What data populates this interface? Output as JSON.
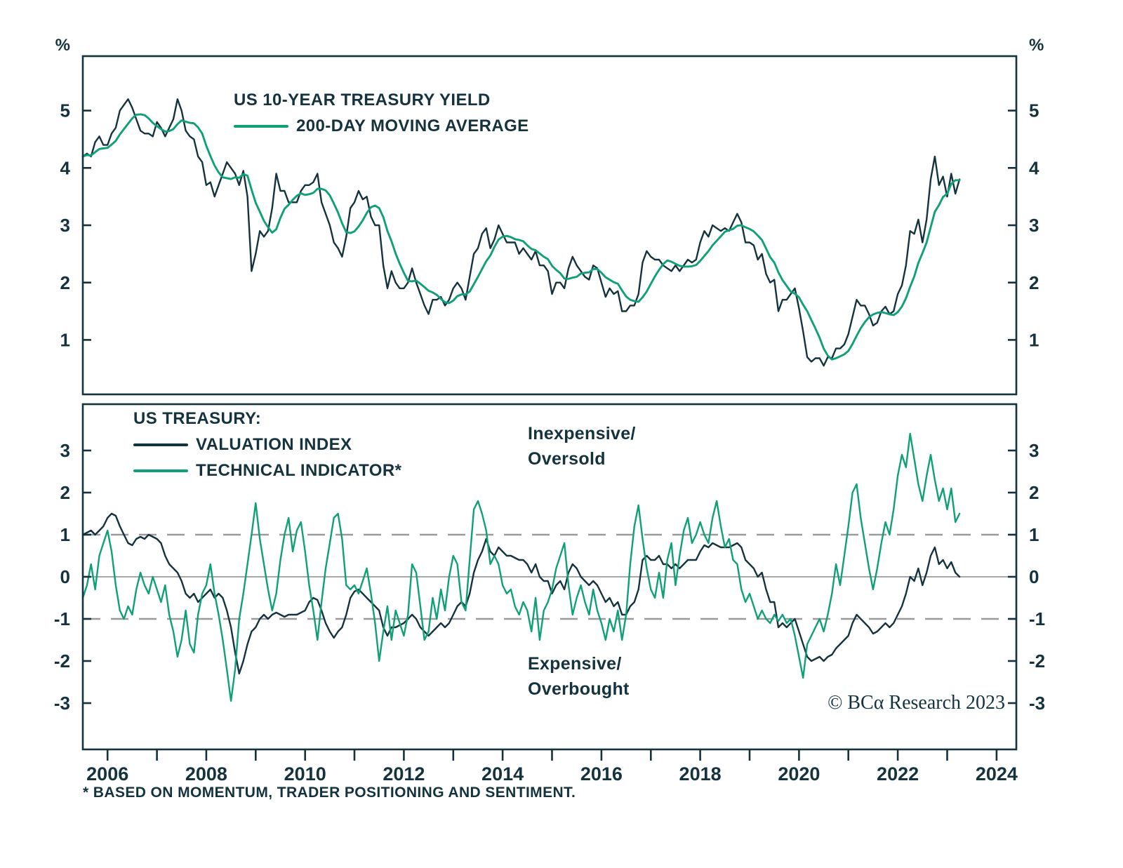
{
  "colors": {
    "dark": "#14333E",
    "green": "#0FA078",
    "gridline": "#9B9B9B",
    "background": "#FFFFFF"
  },
  "top_legend": {
    "line1": "US 10-YEAR TREASURY YIELD",
    "line2": "200-DAY MOVING AVERAGE"
  },
  "bottom_legend": {
    "title": "US TREASURY:",
    "item1": "VALUATION INDEX",
    "item2": "TECHNICAL INDICATOR*"
  },
  "annotations": {
    "upper_line1": "Inexpensive/",
    "upper_line2": "Oversold",
    "lower_line1": "Expensive/",
    "lower_line2": "Overbought"
  },
  "credit": "© BCα Research 2023",
  "footnote": "* BASED ON MOMENTUM, TRADER POSITIONING AND SENTIMENT.",
  "chart_data": [
    {
      "type": "line",
      "panel": "top",
      "ylabel_left": "%",
      "ylabel_right": "%",
      "xlim": [
        2005.5,
        2024.4
      ],
      "ylim": [
        0.05,
        5.95
      ],
      "y_ticks": [
        5,
        4,
        3,
        2,
        1
      ],
      "grid": false,
      "legend_position": "top-left-inside",
      "x_start": 2005.5,
      "x_step": 0.0833333,
      "series": [
        {
          "name": "US 10-YEAR TREASURY YIELD",
          "color": "dark",
          "values": [
            4.2,
            4.25,
            4.2,
            4.45,
            4.55,
            4.4,
            4.4,
            4.6,
            4.7,
            5.0,
            5.1,
            5.2,
            5.05,
            4.85,
            4.65,
            4.6,
            4.6,
            4.55,
            4.8,
            4.7,
            4.55,
            4.7,
            4.85,
            5.2,
            5.0,
            4.65,
            4.55,
            4.5,
            4.2,
            4.1,
            3.7,
            3.75,
            3.5,
            3.7,
            3.9,
            4.1,
            4.0,
            3.9,
            3.7,
            3.95,
            3.5,
            2.2,
            2.5,
            2.9,
            2.8,
            2.9,
            3.3,
            3.9,
            3.6,
            3.6,
            3.4,
            3.4,
            3.4,
            3.6,
            3.7,
            3.7,
            3.75,
            3.9,
            3.4,
            3.2,
            3.0,
            2.7,
            2.6,
            2.45,
            2.8,
            3.3,
            3.4,
            3.6,
            3.45,
            3.5,
            3.15,
            3.0,
            3.0,
            2.3,
            1.9,
            2.2,
            2.0,
            1.9,
            1.9,
            2.0,
            2.25,
            2.0,
            1.8,
            1.6,
            1.45,
            1.7,
            1.7,
            1.75,
            1.6,
            1.7,
            1.9,
            2.0,
            1.9,
            1.7,
            2.1,
            2.5,
            2.6,
            2.85,
            2.95,
            2.6,
            2.75,
            3.0,
            2.85,
            2.7,
            2.7,
            2.7,
            2.5,
            2.6,
            2.5,
            2.4,
            2.55,
            2.3,
            2.3,
            2.2,
            1.8,
            2.0,
            2.0,
            1.9,
            2.25,
            2.45,
            2.3,
            2.2,
            2.1,
            2.05,
            2.3,
            2.25,
            2.0,
            1.75,
            1.9,
            1.8,
            1.85,
            1.5,
            1.5,
            1.6,
            1.6,
            1.8,
            2.35,
            2.55,
            2.45,
            2.4,
            2.4,
            2.3,
            2.25,
            2.2,
            2.3,
            2.2,
            2.3,
            2.4,
            2.35,
            2.4,
            2.7,
            2.9,
            2.8,
            3.0,
            2.95,
            2.9,
            2.95,
            2.9,
            3.05,
            3.2,
            3.05,
            2.7,
            2.7,
            2.65,
            2.4,
            2.5,
            2.15,
            2.0,
            2.05,
            1.5,
            1.7,
            1.7,
            1.8,
            1.9,
            1.55,
            1.15,
            0.7,
            0.62,
            0.68,
            0.68,
            0.55,
            0.7,
            0.68,
            0.85,
            0.85,
            0.92,
            1.1,
            1.4,
            1.7,
            1.6,
            1.6,
            1.45,
            1.25,
            1.3,
            1.5,
            1.58,
            1.45,
            1.5,
            1.8,
            1.95,
            2.3,
            2.9,
            2.85,
            3.1,
            2.7,
            3.1,
            3.8,
            4.2,
            3.7,
            3.85,
            3.5,
            3.9,
            3.55,
            3.8
          ]
        },
        {
          "name": "200-DAY MOVING AVERAGE",
          "color": "green",
          "derived": {
            "type": "moving_average",
            "window": 7,
            "source": 0
          }
        }
      ]
    },
    {
      "type": "line",
      "panel": "bottom",
      "xlim": [
        2005.5,
        2024.4
      ],
      "ylim": [
        -4.1,
        4.1
      ],
      "y_ticks": [
        3,
        2,
        1,
        0,
        -1,
        -2,
        -3
      ],
      "hlines": [
        {
          "y": 1,
          "style": "dashed"
        },
        {
          "y": 0,
          "style": "solid"
        },
        {
          "y": -1,
          "style": "dashed"
        }
      ],
      "x_ticks": {
        "all_years": [
          2006,
          2007,
          2008,
          2009,
          2010,
          2011,
          2012,
          2013,
          2014,
          2015,
          2016,
          2017,
          2018,
          2019,
          2020,
          2021,
          2022,
          2023,
          2024
        ],
        "labeled_years": [
          2006,
          2008,
          2010,
          2012,
          2014,
          2016,
          2018,
          2020,
          2022,
          2024
        ]
      },
      "x_start": 2005.5,
      "x_step": 0.0833333,
      "series": [
        {
          "name": "VALUATION INDEX",
          "color": "dark",
          "values": [
            1.0,
            1.05,
            1.1,
            1.0,
            1.1,
            1.2,
            1.4,
            1.5,
            1.45,
            1.2,
            1.0,
            0.8,
            0.75,
            0.9,
            0.95,
            0.9,
            1.0,
            0.95,
            0.9,
            0.8,
            0.5,
            0.3,
            0.2,
            0.1,
            -0.1,
            -0.4,
            -0.5,
            -0.4,
            -0.6,
            -0.5,
            -0.4,
            -0.3,
            -0.5,
            -0.4,
            -0.5,
            -0.8,
            -1.2,
            -1.8,
            -2.3,
            -2.0,
            -1.6,
            -1.3,
            -1.2,
            -1.0,
            -0.9,
            -1.0,
            -0.9,
            -0.85,
            -0.9,
            -0.95,
            -0.9,
            -0.9,
            -0.9,
            -0.85,
            -0.8,
            -0.6,
            -0.5,
            -0.55,
            -0.8,
            -1.1,
            -1.3,
            -1.45,
            -1.3,
            -1.2,
            -0.9,
            -0.5,
            -0.35,
            -0.3,
            -0.4,
            -0.5,
            -0.6,
            -0.7,
            -0.8,
            -1.2,
            -1.4,
            -1.2,
            -1.2,
            -1.15,
            -1.1,
            -1.0,
            -0.9,
            -1.0,
            -1.2,
            -1.3,
            -1.4,
            -1.3,
            -1.2,
            -1.1,
            -1.2,
            -1.1,
            -0.9,
            -0.7,
            -0.6,
            -0.7,
            -0.4,
            0.1,
            0.4,
            0.6,
            0.9,
            0.6,
            0.5,
            0.7,
            0.6,
            0.5,
            0.5,
            0.45,
            0.4,
            0.4,
            0.3,
            0.1,
            0.3,
            0.0,
            -0.1,
            -0.1,
            -0.4,
            -0.2,
            -0.1,
            -0.3,
            0.1,
            0.3,
            0.2,
            0.0,
            -0.1,
            -0.2,
            -0.1,
            -0.2,
            -0.4,
            -0.6,
            -0.5,
            -0.7,
            -0.6,
            -0.9,
            -0.9,
            -0.7,
            -0.6,
            -0.3,
            0.4,
            0.5,
            0.4,
            0.4,
            0.5,
            0.3,
            0.3,
            0.2,
            0.3,
            0.2,
            0.3,
            0.4,
            0.4,
            0.4,
            0.6,
            0.75,
            0.7,
            0.8,
            0.75,
            0.7,
            0.7,
            0.7,
            0.75,
            0.8,
            0.7,
            0.4,
            0.3,
            0.2,
            0.0,
            0.1,
            -0.3,
            -0.6,
            -0.6,
            -1.2,
            -1.1,
            -1.2,
            -1.1,
            -1.0,
            -1.3,
            -1.6,
            -1.9,
            -2.0,
            -1.95,
            -1.9,
            -2.0,
            -1.9,
            -1.85,
            -1.7,
            -1.6,
            -1.5,
            -1.4,
            -1.1,
            -0.9,
            -1.0,
            -1.1,
            -1.2,
            -1.35,
            -1.3,
            -1.2,
            -1.1,
            -1.2,
            -1.1,
            -0.9,
            -0.7,
            -0.4,
            0.0,
            -0.1,
            0.2,
            -0.2,
            0.1,
            0.5,
            0.7,
            0.3,
            0.4,
            0.2,
            0.35,
            0.1,
            0.0
          ]
        },
        {
          "name": "TECHNICAL INDICATOR*",
          "color": "green",
          "values": [
            -0.5,
            -0.2,
            0.3,
            -0.3,
            0.5,
            0.8,
            1.1,
            0.6,
            -0.2,
            -0.8,
            -1.0,
            -0.7,
            -0.9,
            -0.3,
            0.1,
            -0.2,
            -0.4,
            0.0,
            -0.3,
            -0.6,
            -0.2,
            -0.9,
            -1.3,
            -1.9,
            -1.5,
            -0.8,
            -1.6,
            -1.8,
            -0.9,
            -0.4,
            -0.2,
            0.3,
            -0.4,
            -0.9,
            -1.5,
            -2.2,
            -2.95,
            -2.2,
            -1.0,
            -0.4,
            0.3,
            1.0,
            1.75,
            0.9,
            0.3,
            -0.3,
            -0.8,
            -0.4,
            0.4,
            1.0,
            1.4,
            0.6,
            1.1,
            1.3,
            0.6,
            -0.2,
            -0.8,
            -1.5,
            -0.6,
            0.2,
            0.8,
            1.4,
            1.5,
            0.9,
            -0.2,
            -0.3,
            -0.2,
            -0.4,
            -0.1,
            0.2,
            -0.4,
            -1.1,
            -2.0,
            -1.3,
            -0.7,
            -1.5,
            -0.8,
            -1.1,
            -1.4,
            -0.9,
            0.3,
            0.1,
            -0.7,
            -1.5,
            -1.3,
            -0.5,
            -1.0,
            -0.3,
            -0.8,
            0.0,
            0.5,
            0.3,
            -0.6,
            -0.8,
            0.4,
            1.6,
            1.8,
            1.5,
            1.1,
            0.3,
            0.5,
            0.3,
            -0.2,
            -0.4,
            -0.3,
            -0.7,
            -0.9,
            -0.6,
            -0.8,
            -1.3,
            -0.5,
            -1.5,
            -0.8,
            -0.6,
            -0.3,
            0.2,
            0.5,
            0.8,
            -0.2,
            -0.9,
            -0.5,
            -0.2,
            -0.6,
            -0.9,
            -0.3,
            -0.8,
            -1.1,
            -1.5,
            -1.0,
            -1.3,
            -0.8,
            -1.5,
            -0.9,
            0.3,
            1.2,
            1.7,
            0.9,
            0.2,
            -0.3,
            -0.5,
            0.1,
            -0.5,
            0.4,
            0.8,
            -0.2,
            0.5,
            1.1,
            1.4,
            0.8,
            1.0,
            1.3,
            1.0,
            0.8,
            1.4,
            1.8,
            1.2,
            0.7,
            0.9,
            0.4,
            0.3,
            -0.3,
            -0.6,
            -0.4,
            -0.7,
            -1.0,
            -0.8,
            -1.0,
            -1.1,
            -0.9,
            -1.05,
            -0.9,
            -1.1,
            -1.0,
            -1.4,
            -1.9,
            -2.4,
            -1.6,
            -1.4,
            -1.2,
            -1.0,
            -1.3,
            -0.9,
            -0.4,
            0.3,
            -0.2,
            0.5,
            1.2,
            2.0,
            2.2,
            1.4,
            0.8,
            0.2,
            -0.3,
            0.2,
            0.8,
            1.3,
            1.0,
            1.6,
            2.4,
            2.9,
            2.6,
            3.4,
            2.8,
            2.2,
            1.8,
            2.4,
            2.9,
            2.3,
            1.8,
            2.1,
            1.6,
            2.1,
            1.3,
            1.5
          ]
        }
      ]
    }
  ]
}
